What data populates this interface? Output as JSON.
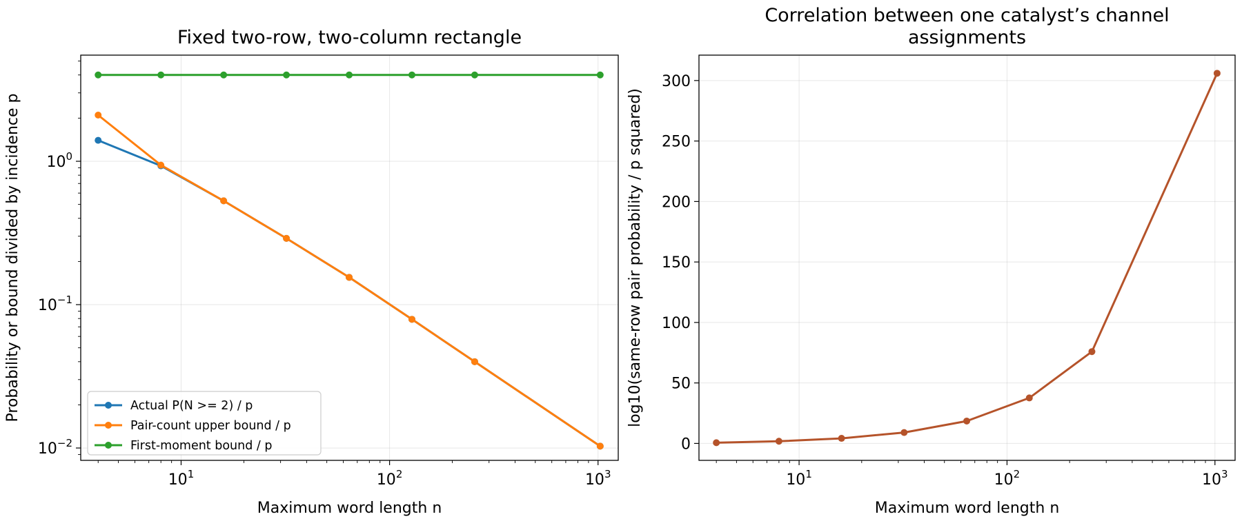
{
  "chart_data": [
    {
      "type": "line",
      "title": "Fixed two-row, two-column rectangle",
      "xlabel": "Maximum word length n",
      "ylabel": "Probability or bound divided by incidence p",
      "xscale": "log",
      "yscale": "log",
      "xlim": [
        3.3,
        1250
      ],
      "ylim": [
        0.0082,
        5.5
      ],
      "xticks": [
        {
          "value": 10,
          "base": "10",
          "exp": "1"
        },
        {
          "value": 100,
          "base": "10",
          "exp": "2"
        },
        {
          "value": 1000,
          "base": "10",
          "exp": "3"
        }
      ],
      "yticks": [
        {
          "value": 1,
          "base": "10",
          "exp": "0"
        },
        {
          "value": 0.1,
          "base": "10",
          "exp": "−1"
        },
        {
          "value": 0.01,
          "base": "10",
          "exp": "−2"
        }
      ],
      "grid": true,
      "legend": "lower-left",
      "x": [
        4,
        8,
        16,
        32,
        64,
        128,
        256,
        1024
      ],
      "series": [
        {
          "name": "Actual P(N >= 2) / p",
          "color": "#1f77b4",
          "values": [
            1.4,
            0.93,
            0.53,
            0.29,
            0.155,
            0.079,
            0.04,
            0.0103
          ]
        },
        {
          "name": "Pair-count upper bound / p",
          "color": "#ff7f0e",
          "values": [
            2.1,
            0.94,
            0.53,
            0.29,
            0.155,
            0.079,
            0.04,
            0.0103
          ]
        },
        {
          "name": "First-moment bound / p",
          "color": "#2ca02c",
          "values": [
            4.0,
            4.0,
            4.0,
            4.0,
            4.0,
            4.0,
            4.0,
            4.0
          ]
        }
      ]
    },
    {
      "type": "line",
      "title_lines": [
        "Correlation between one catalyst’s channel",
        "assignments"
      ],
      "xlabel": "Maximum word length n",
      "ylabel": "log10(same-row pair probability / p squared)",
      "xscale": "log",
      "ylim": [
        -14,
        321
      ],
      "xlim": [
        3.3,
        1250
      ],
      "xticks": [
        {
          "value": 10,
          "base": "10",
          "exp": "1"
        },
        {
          "value": 100,
          "base": "10",
          "exp": "2"
        },
        {
          "value": 1000,
          "base": "10",
          "exp": "3"
        }
      ],
      "yticks": [
        0,
        50,
        100,
        150,
        200,
        250,
        300
      ],
      "grid": true,
      "x": [
        4,
        8,
        16,
        32,
        64,
        128,
        256,
        1024
      ],
      "series": [
        {
          "color": "#b5532a",
          "values": [
            0.6,
            1.8,
            4.2,
            9.0,
            18.5,
            37.6,
            75.9,
            306.0
          ]
        }
      ]
    }
  ]
}
